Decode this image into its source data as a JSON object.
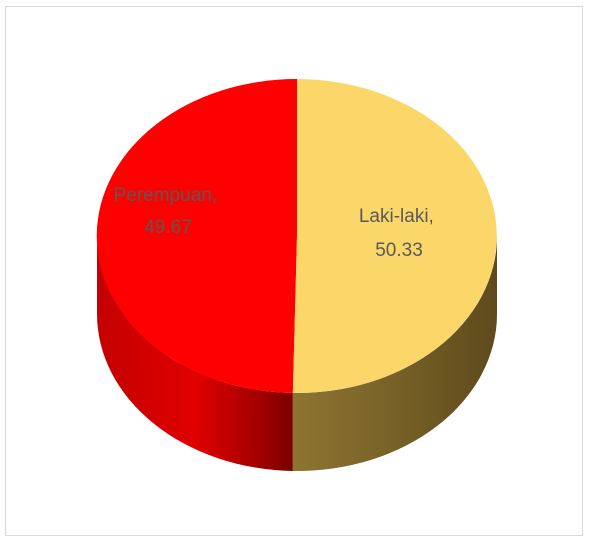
{
  "chart_data": {
    "type": "pie",
    "style": "3d",
    "slices": [
      {
        "name": "Laki-laki",
        "value": 50.33,
        "color": "#FBD76A",
        "side_color": "#7A6328",
        "label_line1": "Laki-laki,",
        "label_line2": "50.33"
      },
      {
        "name": "Perempuan",
        "value": 49.67,
        "color": "#FF0000",
        "side_color": "#A80000",
        "label_line1": "Perempuan,",
        "label_line2": "49.67"
      }
    ],
    "legend": "none",
    "title": ""
  }
}
